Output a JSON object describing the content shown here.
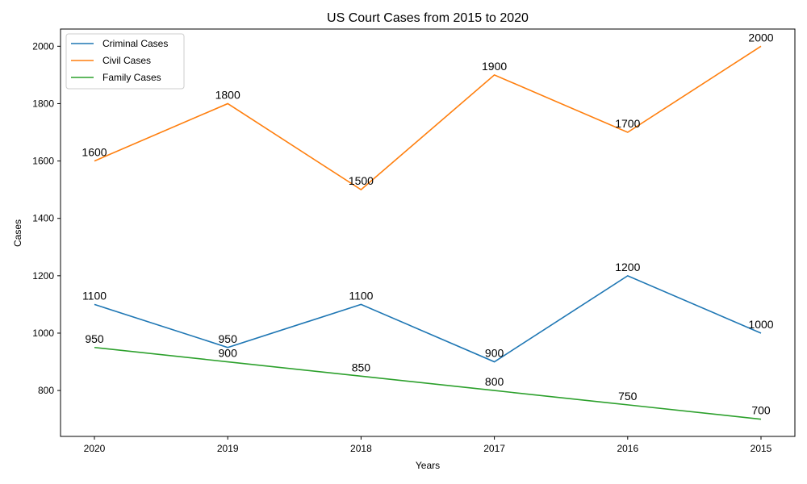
{
  "chart_data": {
    "type": "line",
    "title": "US Court Cases from 2015 to 2020",
    "xlabel": "Years",
    "ylabel": "Cases",
    "categories": [
      "2020",
      "2019",
      "2018",
      "2017",
      "2016",
      "2015"
    ],
    "ylim": [
      640,
      2060
    ],
    "yticks": [
      800,
      1000,
      1200,
      1400,
      1600,
      1800,
      2000
    ],
    "grid": false,
    "legend_position": "top-left",
    "series": [
      {
        "name": "Criminal Cases",
        "color": "#1f77b4",
        "values": [
          1100,
          950,
          1100,
          900,
          1200,
          1000
        ]
      },
      {
        "name": "Civil Cases",
        "color": "#ff7f0e",
        "values": [
          1600,
          1800,
          1500,
          1900,
          1700,
          2000
        ]
      },
      {
        "name": "Family Cases",
        "color": "#2ca02c",
        "values": [
          950,
          900,
          850,
          800,
          750,
          700
        ]
      }
    ]
  }
}
